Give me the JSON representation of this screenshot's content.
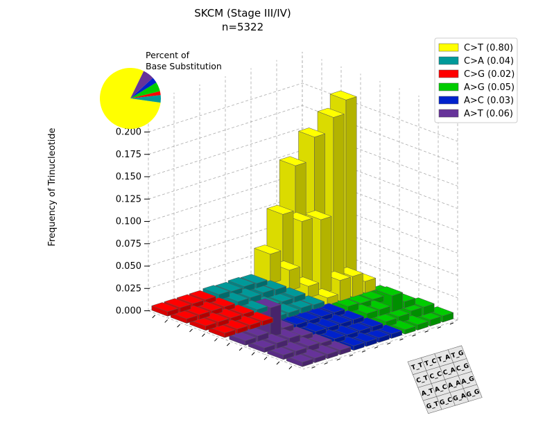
{
  "chart_data": {
    "type": "bar3d",
    "title": "SKCM (Stage III/IV)",
    "subtitle": "n=5322",
    "zlabel": "Frequency of Trinucleotide",
    "zticks": [
      "0.000",
      "0.025",
      "0.050",
      "0.075",
      "0.100",
      "0.125",
      "0.150",
      "0.175",
      "0.200"
    ],
    "zlim": [
      0,
      0.2
    ],
    "grid": true,
    "legend_position": "top-right",
    "categories": [
      "C>T",
      "C>A",
      "C>G",
      "A>G",
      "A>C",
      "A>T"
    ],
    "legend": [
      {
        "label": "C>T (0.80)",
        "color": "#ffff00"
      },
      {
        "label": "C>A (0.04)",
        "color": "#009999"
      },
      {
        "label": "C>G (0.02)",
        "color": "#ff0000"
      },
      {
        "label": "A>G (0.05)",
        "color": "#00cc00"
      },
      {
        "label": "A>C (0.03)",
        "color": "#0022cc"
      },
      {
        "label": "A>T (0.06)",
        "color": "#663399"
      }
    ],
    "pie": {
      "label_line1": "Percent of",
      "label_line2": "Base Substitution",
      "values": [
        0.8,
        0.04,
        0.02,
        0.05,
        0.03,
        0.06
      ],
      "colors": [
        "#ffff00",
        "#009999",
        "#ff0000",
        "#00cc00",
        "#0022cc",
        "#663399"
      ]
    },
    "context_key": [
      [
        "T_T",
        "T_C",
        "T_A",
        "T_G"
      ],
      [
        "C_T",
        "C_C",
        "C_A",
        "C_G"
      ],
      [
        "A_T",
        "A_C",
        "A_A",
        "A_G"
      ],
      [
        "G_T",
        "G_C",
        "G_A",
        "G_G"
      ]
    ],
    "panels": [
      {
        "name": "C>G",
        "color": "#ff0000",
        "values": [
          [
            0.002,
            0.002,
            0.002,
            0.002
          ],
          [
            0.002,
            0.002,
            0.002,
            0.002
          ],
          [
            0.002,
            0.002,
            0.002,
            0.002
          ],
          [
            0.002,
            0.002,
            0.002,
            0.002
          ]
        ]
      },
      {
        "name": "C>A",
        "color": "#009999",
        "values": [
          [
            0.002,
            0.003,
            0.003,
            0.002
          ],
          [
            0.003,
            0.004,
            0.002,
            0.003
          ],
          [
            0.002,
            0.003,
            0.002,
            0.002
          ],
          [
            0.003,
            0.003,
            0.002,
            0.002
          ]
        ]
      },
      {
        "name": "C>T",
        "color": "#ffff00",
        "values": [
          [
            0.07,
            0.06,
            0.205,
            0.01
          ],
          [
            0.12,
            0.16,
            0.19,
            0.02
          ],
          [
            0.07,
            0.07,
            0.08,
            0.02
          ],
          [
            0.03,
            0.02,
            0.01,
            0.005
          ]
        ]
      },
      {
        "name": "A>T",
        "color": "#663399",
        "values": [
          [
            0.003,
            0.002,
            0.002,
            0.002
          ],
          [
            0.03,
            0.004,
            0.003,
            0.002
          ],
          [
            0.003,
            0.003,
            0.002,
            0.002
          ],
          [
            0.002,
            0.002,
            0.002,
            0.002
          ]
        ]
      },
      {
        "name": "A>C",
        "color": "#0022cc",
        "values": [
          [
            0.002,
            0.002,
            0.002,
            0.002
          ],
          [
            0.002,
            0.002,
            0.002,
            0.002
          ],
          [
            0.002,
            0.002,
            0.002,
            0.002
          ],
          [
            0.002,
            0.002,
            0.002,
            0.002
          ]
        ]
      },
      {
        "name": "A>G",
        "color": "#00cc00",
        "values": [
          [
            0.004,
            0.004,
            0.006,
            0.004
          ],
          [
            0.003,
            0.015,
            0.006,
            0.004
          ],
          [
            0.003,
            0.004,
            0.004,
            0.003
          ],
          [
            0.004,
            0.004,
            0.003,
            0.002
          ]
        ]
      }
    ]
  }
}
